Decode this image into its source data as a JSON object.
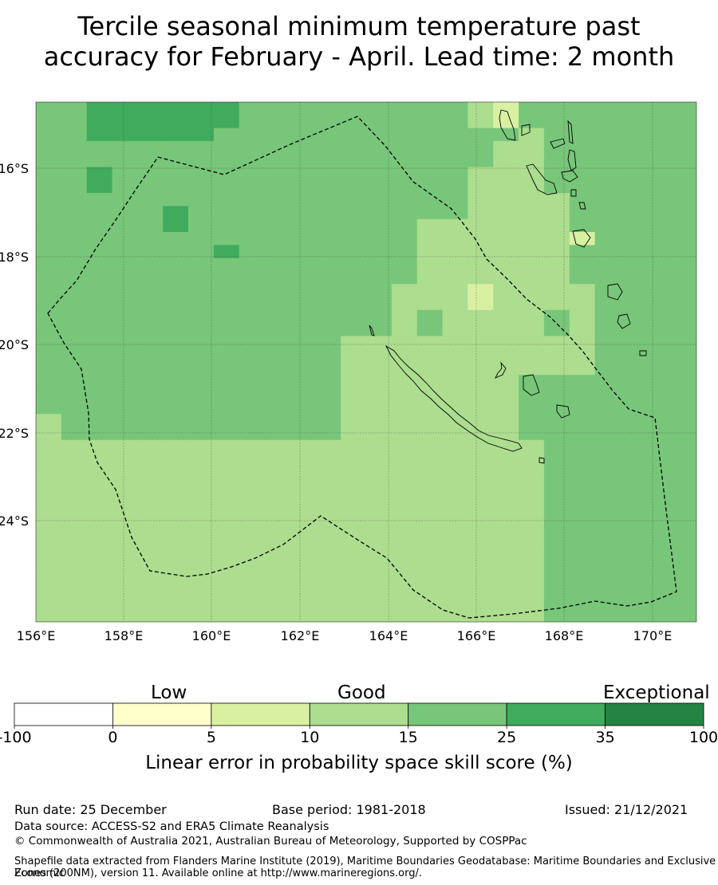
{
  "title": {
    "line1": "Tercile seasonal minimum temperature past",
    "line2": "accuracy for February - April. Lead time: 2 month"
  },
  "map": {
    "lon_labels": [
      "156°E",
      "158°E",
      "160°E",
      "162°E",
      "164°E",
      "166°E",
      "168°E",
      "170°E"
    ],
    "lat_labels": [
      "16°S",
      "18°S",
      "20°S",
      "22°S",
      "24°S"
    ],
    "colors": [
      "#ffffff",
      "#ffffcc",
      "#d9f0a3",
      "#addd8e",
      "#78c679",
      "#41ab5d",
      "#238443"
    ],
    "grid": [
      "44555555444444444324444444",
      "44555555444444444324444444",
      "44555554444444444443444444",
      "44444444444444444433444444",
      "44444444444444444433444444",
      "44544444444444444333444444",
      "44544444444444444333444444",
      "44444444444444444333344444",
      "44444544444444444333344444",
      "44444544444444433333344444",
      "44444444444444433333324444",
      "44444445444444433333344444",
      "44444444444444433333344444",
      "44444444444444433333344444",
      "44444444444444333233334444",
      "44444444444444333233334444",
      "44444444444444343333434444",
      "44444444444444343333434444",
      "44444444444433333333334444",
      "44444444444433333333334444",
      "44444444444433333333334444",
      "44444444444433333334444444",
      "44444444444433333334444444",
      "44444444444433333334444444",
      "34444444444433333334444444",
      "34444444444433333334444444",
      "33333333333333333333444444",
      "33333333333333333333444444",
      "33333333333333333333444444",
      "33333333333333333333444444",
      "33333333333333333333444444",
      "33333333333333333333444444",
      "33333333333333333333444444",
      "33333333333333333333444444",
      "33333333333333333333444444",
      "33333333333333333333444444",
      "33333333333333333333444444",
      "33333333333333333333444444",
      "33333333333333333333444444",
      "33333333333333333333444444"
    ]
  },
  "colorbar": {
    "categories": {
      "low": "Low",
      "good": "Good",
      "exceptional": "Exceptional"
    },
    "ticks": [
      "-100",
      "0",
      "5",
      "10",
      "15",
      "25",
      "35",
      "100"
    ],
    "segment_colors": [
      "#ffffff",
      "#ffffcc",
      "#d9f0a3",
      "#addd8e",
      "#78c679",
      "#41ab5d",
      "#238443"
    ],
    "label": "Linear error in probability space skill score (%)"
  },
  "footer": {
    "run_date": "Run date: 25 December",
    "base_period": "Base period: 1981-2018",
    "issued": "Issued: 21/12/2021",
    "data_source": "Data source: ACCESS-S2 and ERA5 Climate Reanalysis",
    "copyright": "© Commonwealth of Australia 2021, Australian Bureau of Meteorology, Supported by COSPPac",
    "shapefile_line1": "Shapefile data extracted from Flanders Marine Institute (2019), Maritime Boundaries Geodatabase: Maritime Boundaries and Exclusive Economic",
    "shapefile_line2": "Zones (200NM), version 11. Available online at http://www.marineregions.org/."
  }
}
